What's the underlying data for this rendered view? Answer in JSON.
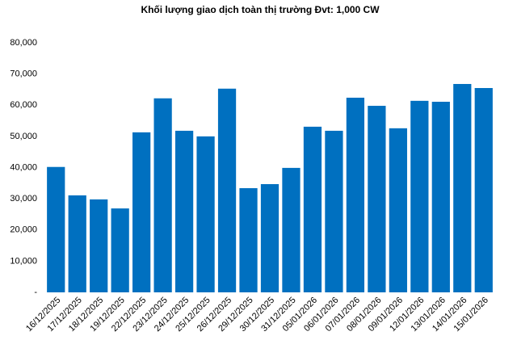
{
  "chart_data": {
    "type": "bar",
    "title": "Khối lượng giao dịch toàn thị trường Đvt: 1,000 CW",
    "categories": [
      "16/12/2025",
      "17/12/2025",
      "18/12/2025",
      "19/12/2025",
      "22/12/2025",
      "23/12/2025",
      "24/12/2025",
      "25/12/2025",
      "26/12/2025",
      "29/12/2025",
      "30/12/2025",
      "31/12/2025",
      "05/01/2026",
      "06/01/2026",
      "07/01/2026",
      "08/01/2026",
      "09/01/2026",
      "12/01/2026",
      "13/01/2026",
      "14/01/2026",
      "15/01/2026"
    ],
    "values": [
      40200,
      31100,
      29800,
      26900,
      51300,
      62200,
      51800,
      50000,
      65300,
      33400,
      34700,
      39900,
      53100,
      51800,
      62400,
      59800,
      52600,
      61400,
      61100,
      66800,
      65500
    ],
    "color": "#0070c0",
    "ylim": [
      0,
      80000
    ],
    "yticks": [
      {
        "value": 0,
        "label": "-"
      },
      {
        "value": 10000,
        "label": "10,000"
      },
      {
        "value": 20000,
        "label": "20,000"
      },
      {
        "value": 30000,
        "label": "30,000"
      },
      {
        "value": 40000,
        "label": "40,000"
      },
      {
        "value": 50000,
        "label": "50,000"
      },
      {
        "value": 60000,
        "label": "60,000"
      },
      {
        "value": 70000,
        "label": "70,000"
      },
      {
        "value": 80000,
        "label": "80,000"
      }
    ],
    "grid": false
  }
}
